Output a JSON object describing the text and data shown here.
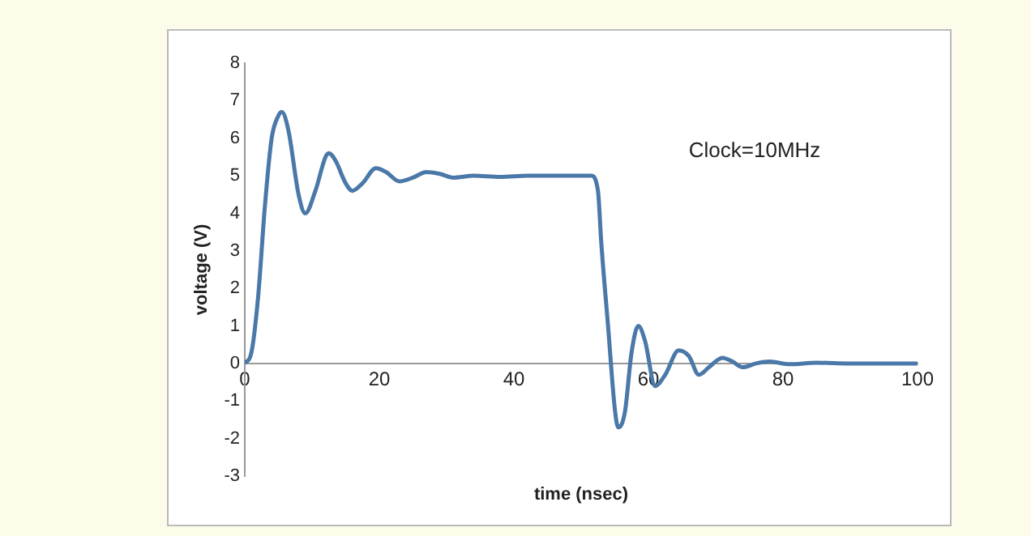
{
  "chart_data": {
    "type": "line",
    "xlabel": "time (nsec)",
    "ylabel": "voltage (V)",
    "annotations": [
      "Clock=10MHz"
    ],
    "x": [
      0,
      1,
      2,
      3,
      4,
      5,
      5.5,
      6.5,
      8,
      9,
      10.5,
      12,
      12.5,
      13.5,
      15,
      16,
      17.5,
      19.5,
      21,
      23,
      25,
      27,
      29,
      31,
      34,
      38,
      42,
      46,
      50,
      51.5,
      52.5,
      53,
      54,
      55,
      55.5,
      56.5,
      57.5,
      58.5,
      59.5,
      61,
      62.5,
      64.5,
      66,
      67.5,
      69,
      71,
      72.5,
      74,
      76,
      78,
      81,
      85,
      90,
      95,
      100
    ],
    "series": [
      {
        "color": "#4a78a8",
        "values": [
          0,
          0.3,
          1.8,
          4.2,
          6.0,
          6.6,
          6.7,
          6.2,
          4.5,
          4.0,
          4.6,
          5.5,
          5.6,
          5.4,
          4.8,
          4.6,
          4.8,
          5.2,
          5.1,
          4.85,
          4.95,
          5.1,
          5.05,
          4.95,
          5.0,
          4.97,
          5.0,
          5.0,
          5.0,
          5.0,
          4.6,
          3.2,
          1.0,
          -1.2,
          -1.7,
          -1.3,
          0.3,
          1.0,
          0.6,
          -0.6,
          -0.3,
          0.35,
          0.2,
          -0.3,
          -0.1,
          0.15,
          0.05,
          -0.1,
          0.0,
          0.05,
          -0.02,
          0.02,
          0.0,
          0.0,
          0.0
        ]
      }
    ],
    "xlim": [
      0,
      100
    ],
    "xticks": [
      0,
      20,
      40,
      60,
      80,
      100
    ],
    "ylim": [
      -3,
      8
    ],
    "yticks": [
      -3,
      -2,
      -1,
      0,
      1,
      2,
      3,
      4,
      5,
      6,
      7,
      8
    ],
    "grid": false,
    "legend": false,
    "marker": "none",
    "line_style": "solid"
  }
}
